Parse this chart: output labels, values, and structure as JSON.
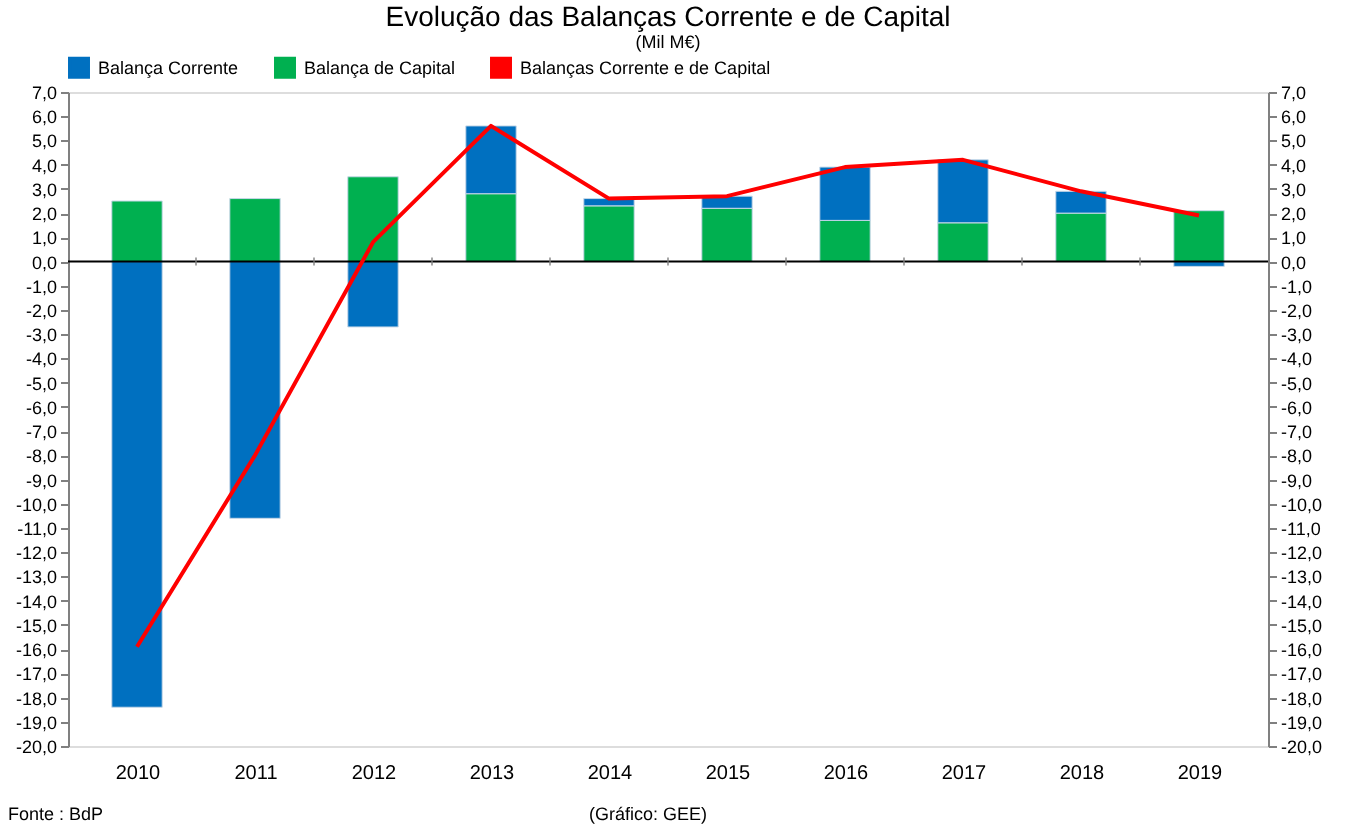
{
  "chart_data": {
    "type": "bar",
    "title": "Evolução das Balanças Corrente e de Capital",
    "subtitle": "(Mil M€)",
    "categories": [
      "2010",
      "2011",
      "2012",
      "2013",
      "2014",
      "2015",
      "2016",
      "2017",
      "2018",
      "2019"
    ],
    "stacked": true,
    "series": [
      {
        "name": "Balança de Capital",
        "color": "#00b050",
        "values": [
          2.5,
          2.6,
          3.5,
          2.8,
          2.3,
          2.2,
          1.7,
          1.6,
          2.0,
          2.1
        ]
      },
      {
        "name": "Balança Corrente",
        "color": "#0070c0",
        "values": [
          -18.4,
          -10.6,
          -2.7,
          2.8,
          0.3,
          0.5,
          2.2,
          2.6,
          0.9,
          -0.2
        ]
      },
      {
        "name": "Balanças Corrente e de Capital",
        "type": "line",
        "axis": "y2",
        "color": "#ff0000",
        "values": [
          -15.9,
          -8.0,
          0.8,
          5.6,
          2.6,
          2.7,
          3.9,
          4.2,
          2.9,
          1.9
        ]
      }
    ],
    "ylim": [
      -20,
      7
    ],
    "yticks": [
      {
        "value": 7,
        "label": "7,0"
      },
      {
        "value": 6,
        "label": "6,0"
      },
      {
        "value": 5,
        "label": "5,0"
      },
      {
        "value": 4,
        "label": "4,0"
      },
      {
        "value": 3,
        "label": "3,0"
      },
      {
        "value": 2,
        "label": "2,0"
      },
      {
        "value": 1,
        "label": "1,0"
      },
      {
        "value": 0,
        "label": "0,0"
      },
      {
        "value": -1,
        "label": "-1,0"
      },
      {
        "value": -2,
        "label": "-2,0"
      },
      {
        "value": -3,
        "label": "-3,0"
      },
      {
        "value": -4,
        "label": "-4,0"
      },
      {
        "value": -5,
        "label": "-5,0"
      },
      {
        "value": -6,
        "label": "-6,0"
      },
      {
        "value": -7,
        "label": "-7,0"
      },
      {
        "value": -8,
        "label": "-8,0"
      },
      {
        "value": -9,
        "label": "-9,0"
      },
      {
        "value": -10,
        "label": "-10,0"
      },
      {
        "value": -11,
        "label": "-11,0"
      },
      {
        "value": -12,
        "label": "-12,0"
      },
      {
        "value": -13,
        "label": "-13,0"
      },
      {
        "value": -14,
        "label": "-14,0"
      },
      {
        "value": -15,
        "label": "-15,0"
      },
      {
        "value": -16,
        "label": "-16,0"
      },
      {
        "value": -17,
        "label": "-17,0"
      },
      {
        "value": -18,
        "label": "-18,0"
      },
      {
        "value": -19,
        "label": "-19,0"
      },
      {
        "value": -20,
        "label": "-20,0"
      }
    ],
    "y2lim": [
      -20,
      7
    ],
    "y2ticks": [
      {
        "value": 7,
        "label": "7,0"
      },
      {
        "value": 6,
        "label": "6,0"
      },
      {
        "value": 5,
        "label": "5,0"
      },
      {
        "value": 4,
        "label": "4,0"
      },
      {
        "value": 3,
        "label": "3,0"
      },
      {
        "value": 2,
        "label": "2,0"
      },
      {
        "value": 1,
        "label": "1,0"
      },
      {
        "value": 0,
        "label": "0,0"
      },
      {
        "value": -1,
        "label": "-1,0"
      },
      {
        "value": -2,
        "label": "-2,0"
      },
      {
        "value": -3,
        "label": "-3,0"
      },
      {
        "value": -4,
        "label": "-4,0"
      },
      {
        "value": -5,
        "label": "-5,0"
      },
      {
        "value": -6,
        "label": "-6,0"
      },
      {
        "value": -7,
        "label": "-7,0"
      },
      {
        "value": -8,
        "label": "-8,0"
      },
      {
        "value": -9,
        "label": "-9,0"
      },
      {
        "value": -10,
        "label": "-10,0"
      },
      {
        "value": -11,
        "label": "-11,0"
      },
      {
        "value": -12,
        "label": "-12,0"
      },
      {
        "value": -13,
        "label": "-13,0"
      },
      {
        "value": -14,
        "label": "-14,0"
      },
      {
        "value": -15,
        "label": "-15,0"
      },
      {
        "value": -16,
        "label": "-16,0"
      },
      {
        "value": -17,
        "label": "-17,0"
      },
      {
        "value": -18,
        "label": "-18,0"
      },
      {
        "value": -19,
        "label": "-19,0"
      },
      {
        "value": -20,
        "label": "-20,0"
      }
    ],
    "ref_lines": [
      {
        "axis": "y",
        "value": 0,
        "color": "#000000"
      }
    ],
    "grid": false,
    "legend": "top",
    "annotations": [
      "Fonte : BdP",
      "(Gráfico: GEE)"
    ]
  }
}
